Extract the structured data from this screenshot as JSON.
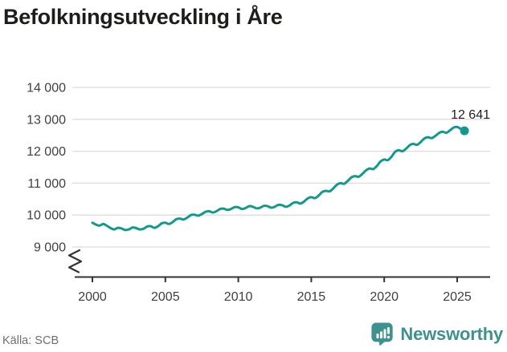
{
  "title": "Befolkningsutveckling i Åre",
  "footer": {
    "source": "Källa: SCB",
    "brand": "Newsworthy"
  },
  "colors": {
    "line": "#10998c",
    "grid": "#dcdcdc",
    "axis": "#333333",
    "tick_text": "#3f3f3f",
    "title_text": "#1d1d1b",
    "end_label_text": "#1d1d1b",
    "source_text": "#6f6f6f",
    "brand": "#3e918e"
  },
  "chart_data": {
    "type": "line",
    "title": "Befolkningsutveckling i Åre",
    "xlabel": "",
    "ylabel": "",
    "series_name": "Befolkning i Åre",
    "frequency": "quarterly",
    "x_start": 2000,
    "x_step": 0.25,
    "x_end": 2025.5,
    "values": [
      9760,
      9700,
      9670,
      9720,
      9660,
      9590,
      9550,
      9600,
      9580,
      9530,
      9550,
      9610,
      9590,
      9550,
      9570,
      9640,
      9650,
      9600,
      9650,
      9740,
      9760,
      9720,
      9780,
      9870,
      9890,
      9860,
      9920,
      10000,
      10010,
      9980,
      10030,
      10100,
      10120,
      10080,
      10120,
      10190,
      10200,
      10160,
      10190,
      10250,
      10240,
      10190,
      10220,
      10280,
      10260,
      10210,
      10230,
      10290,
      10280,
      10230,
      10260,
      10320,
      10310,
      10260,
      10300,
      10380,
      10400,
      10360,
      10420,
      10520,
      10560,
      10530,
      10610,
      10720,
      10760,
      10740,
      10830,
      10950,
      11000,
      10980,
      11070,
      11180,
      11220,
      11200,
      11290,
      11400,
      11460,
      11440,
      11540,
      11680,
      11740,
      11720,
      11830,
      11980,
      12030,
      12000,
      12080,
      12190,
      12230,
      12200,
      12290,
      12400,
      12440,
      12410,
      12480,
      12570,
      12610,
      12580,
      12650,
      12740,
      12760,
      12700,
      12641
    ],
    "last_value": 12641,
    "end_label": "12 641",
    "ylim": [
      9000,
      14000
    ],
    "axis_break": true,
    "grid": "horizontal",
    "legend": "none",
    "yticks": [
      {
        "value": 9000,
        "label": "9 000"
      },
      {
        "value": 10000,
        "label": "10 000"
      },
      {
        "value": 11000,
        "label": "11 000"
      },
      {
        "value": 12000,
        "label": "12 000"
      },
      {
        "value": 13000,
        "label": "13 000"
      },
      {
        "value": 14000,
        "label": "14 000"
      }
    ],
    "xticks": [
      {
        "value": 2000,
        "label": "2000"
      },
      {
        "value": 2005,
        "label": "2005"
      },
      {
        "value": 2010,
        "label": "2010"
      },
      {
        "value": 2015,
        "label": "2015"
      },
      {
        "value": 2020,
        "label": "2020"
      },
      {
        "value": 2025,
        "label": "2025"
      }
    ]
  }
}
